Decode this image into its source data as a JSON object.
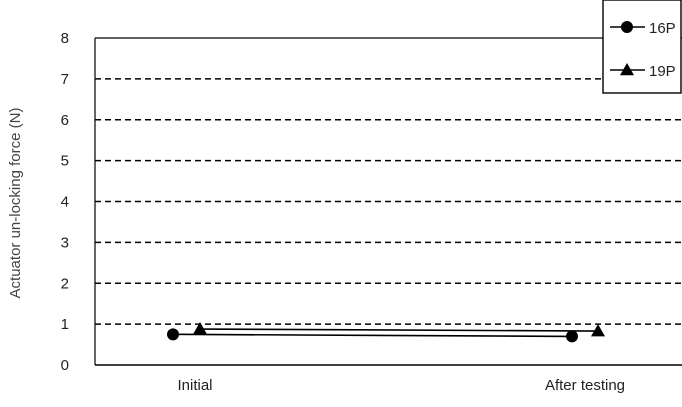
{
  "chart_data": {
    "type": "line",
    "title": "",
    "xlabel": "",
    "ylabel": "Actuator un-locking force (N)",
    "categories": [
      "Initial",
      "After testing"
    ],
    "ylim": [
      0,
      8
    ],
    "yticks": [
      "0",
      "1",
      "2",
      "3",
      "4",
      "5",
      "6",
      "7",
      "8"
    ],
    "grid": "horizontal-dashed",
    "legend_position": "top-right",
    "series": [
      {
        "name": "16P",
        "marker": "circle",
        "color": "#000000",
        "values": [
          0.75,
          0.7
        ]
      },
      {
        "name": "19P",
        "marker": "triangle",
        "color": "#000000",
        "values": [
          0.88,
          0.83
        ]
      }
    ]
  }
}
